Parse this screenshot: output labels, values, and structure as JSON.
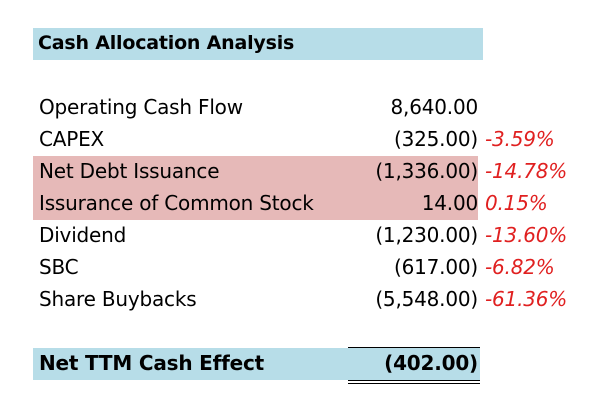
{
  "title": "Cash Allocation Analysis",
  "rows": [
    {
      "label": "Operating Cash Flow",
      "value": "8,640.00",
      "pct": ""
    },
    {
      "label": "CAPEX",
      "value": "(325.00)",
      "pct": "-3.59%"
    },
    {
      "label": "Net Debt Issuance",
      "value": "(1,336.00)",
      "pct": "-14.78%"
    },
    {
      "label": "Issurance of Common Stock",
      "value": "14.00",
      "pct": "0.15%"
    },
    {
      "label": "Dividend",
      "value": "(1,230.00)",
      "pct": "-13.60%"
    },
    {
      "label": "SBC",
      "value": "(617.00)",
      "pct": "-6.82%"
    },
    {
      "label": "Share Buybacks",
      "value": "(5,548.00)",
      "pct": "-61.36%"
    }
  ],
  "total": {
    "label": "Net TTM Cash Effect",
    "value": "(402.00)"
  },
  "colors": {
    "header_fill": "#b7dde8",
    "highlight_fill": "#e6b9b8",
    "percent_text": "#e02020"
  }
}
